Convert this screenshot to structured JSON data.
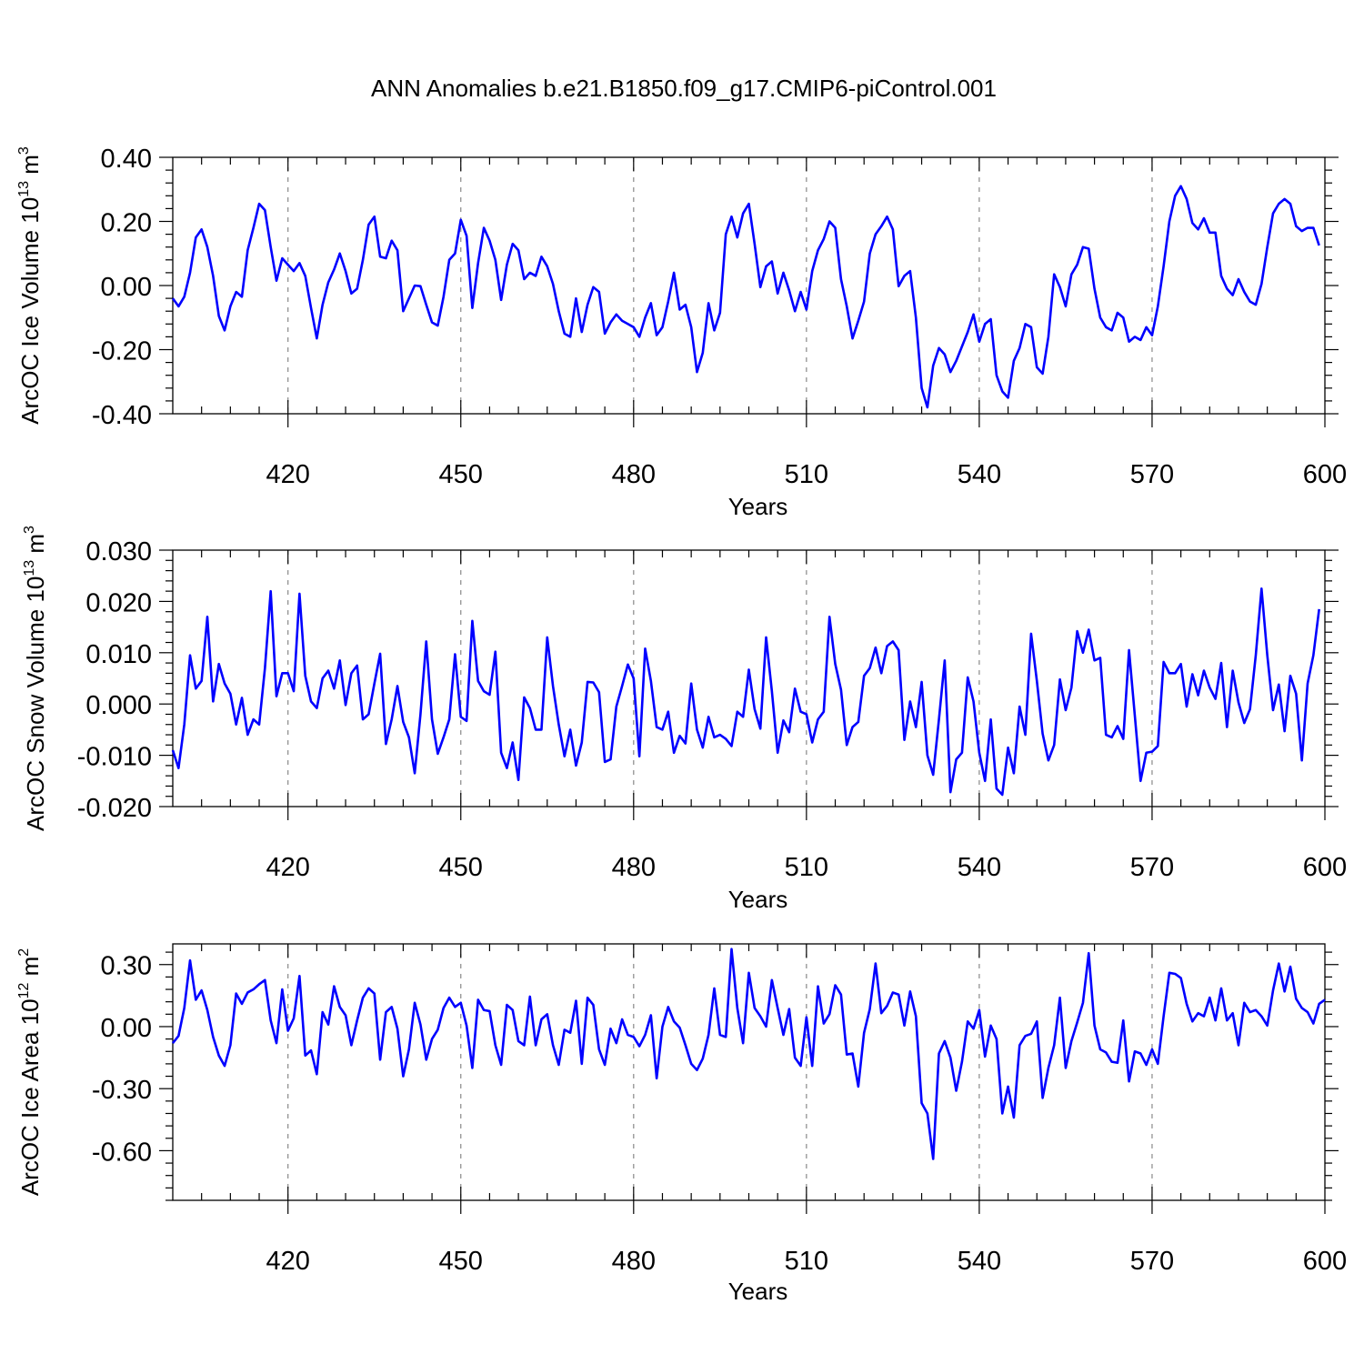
{
  "title": "ANN Anomalies b.e21.B1850.f09_g17.CMIP6-piControl.001",
  "chart_data": [
    {
      "type": "line",
      "xlabel": "Years",
      "ylabel": {
        "main": "ArcOC Ice Volume 10",
        "exp": "13",
        "unit": " m",
        "unit_exp": "3"
      },
      "xlim": [
        400,
        600
      ],
      "ylim": [
        -0.4,
        0.4
      ],
      "xticks": [
        420,
        450,
        480,
        510,
        540,
        570,
        600
      ],
      "yticks": [
        -0.4,
        -0.2,
        0.0,
        0.2,
        0.4
      ],
      "ytick_labels": [
        "-0.40",
        "-0.20",
        "0.00",
        "0.20",
        "0.40"
      ],
      "grid": "vertical dashed at x ticks",
      "color": "#0000ff",
      "series": [
        {
          "x0": 400,
          "dx": 1,
          "values": [
            -0.04,
            -0.065,
            -0.035,
            0.04,
            0.15,
            0.175,
            0.12,
            0.03,
            -0.095,
            -0.14,
            -0.065,
            -0.02,
            -0.035,
            0.11,
            0.18,
            0.255,
            0.235,
            0.12,
            0.015,
            0.085,
            0.065,
            0.045,
            0.07,
            0.03,
            -0.07,
            -0.165,
            -0.06,
            0.01,
            0.05,
            0.1,
            0.045,
            -0.025,
            -0.01,
            0.08,
            0.19,
            0.215,
            0.09,
            0.085,
            0.14,
            0.11,
            -0.08,
            -0.04,
            0.0,
            -0.002,
            -0.06,
            -0.115,
            -0.125,
            -0.035,
            0.08,
            0.1,
            0.205,
            0.155,
            -0.07,
            0.07,
            0.18,
            0.14,
            0.08,
            -0.045,
            0.065,
            0.13,
            0.11,
            0.02,
            0.04,
            0.03,
            0.09,
            0.06,
            0.005,
            -0.08,
            -0.15,
            -0.16,
            -0.04,
            -0.145,
            -0.06,
            -0.005,
            -0.02,
            -0.15,
            -0.115,
            -0.09,
            -0.11,
            -0.12,
            -0.13,
            -0.16,
            -0.1,
            -0.055,
            -0.155,
            -0.13,
            -0.05,
            0.04,
            -0.075,
            -0.06,
            -0.13,
            -0.27,
            -0.21,
            -0.055,
            -0.14,
            -0.085,
            0.16,
            0.215,
            0.15,
            0.225,
            0.255,
            0.13,
            -0.005,
            0.06,
            0.075,
            -0.025,
            0.04,
            -0.015,
            -0.08,
            -0.02,
            -0.075,
            0.045,
            0.11,
            0.145,
            0.2,
            0.18,
            0.02,
            -0.065,
            -0.165,
            -0.11,
            -0.05,
            0.1,
            0.16,
            0.185,
            0.215,
            0.175,
            -0.002,
            0.03,
            0.045,
            -0.1,
            -0.32,
            -0.38,
            -0.25,
            -0.195,
            -0.215,
            -0.27,
            -0.235,
            -0.19,
            -0.145,
            -0.09,
            -0.175,
            -0.12,
            -0.105,
            -0.28,
            -0.33,
            -0.35,
            -0.235,
            -0.195,
            -0.12,
            -0.13,
            -0.255,
            -0.275,
            -0.16,
            0.035,
            -0.005,
            -0.065,
            0.035,
            0.065,
            0.12,
            0.115,
            -0.01,
            -0.1,
            -0.13,
            -0.14,
            -0.085,
            -0.1,
            -0.175,
            -0.16,
            -0.17,
            -0.13,
            -0.155,
            -0.065,
            0.06,
            0.2,
            0.28,
            0.31,
            0.27,
            0.195,
            0.175,
            0.21,
            0.165,
            0.165,
            0.03,
            -0.01,
            -0.03,
            0.02,
            -0.02,
            -0.05,
            -0.06,
            0.005,
            0.12,
            0.225,
            0.255,
            0.27,
            0.255,
            0.185,
            0.17,
            0.18,
            0.18,
            0.125
          ]
        }
      ]
    },
    {
      "type": "line",
      "xlabel": "Years",
      "ylabel": {
        "main": "ArcOC Snow Volume 10",
        "exp": "13",
        "unit": " m",
        "unit_exp": "3"
      },
      "xlim": [
        400,
        600
      ],
      "ylim": [
        -0.02,
        0.03
      ],
      "xticks": [
        420,
        450,
        480,
        510,
        540,
        570,
        600
      ],
      "yticks": [
        -0.02,
        -0.01,
        0.0,
        0.01,
        0.02,
        0.03
      ],
      "ytick_labels": [
        "-0.020",
        "-0.010",
        "0.000",
        "0.010",
        "0.020",
        "0.030"
      ],
      "grid": "vertical dashed at x ticks",
      "color": "#0000ff",
      "series": [
        {
          "x0": 400,
          "dx": 1,
          "values": [
            -0.009,
            -0.0125,
            -0.004,
            0.0095,
            0.003,
            0.0045,
            0.017,
            0.0005,
            0.0078,
            0.004,
            0.002,
            -0.004,
            0.0012,
            -0.006,
            -0.003,
            -0.004,
            0.007,
            0.022,
            0.0015,
            0.006,
            0.006,
            0.0025,
            0.0215,
            0.0055,
            0.0005,
            -0.0008,
            0.005,
            0.0065,
            0.003,
            0.0085,
            -0.0002,
            0.006,
            0.0075,
            -0.003,
            -0.002,
            0.004,
            0.0098,
            -0.0078,
            -0.003,
            0.0035,
            -0.0035,
            -0.0065,
            -0.0135,
            -0.002,
            0.0122,
            -0.003,
            -0.0097,
            -0.0065,
            -0.003,
            0.0097,
            -0.0025,
            -0.0033,
            0.0162,
            0.0045,
            0.0025,
            0.0018,
            0.0102,
            -0.0095,
            -0.0125,
            -0.0075,
            -0.0148,
            0.0013,
            -0.0008,
            -0.005,
            -0.005,
            0.013,
            0.0035,
            -0.004,
            -0.0102,
            -0.005,
            -0.012,
            -0.0075,
            0.0043,
            0.0042,
            0.0023,
            -0.0113,
            -0.0108,
            -0.0005,
            0.0035,
            0.0077,
            0.005,
            -0.0102,
            0.0108,
            0.0045,
            -0.0045,
            -0.005,
            -0.0015,
            -0.0095,
            -0.0062,
            -0.0077,
            0.004,
            -0.005,
            -0.0085,
            -0.0025,
            -0.0065,
            -0.006,
            -0.0068,
            -0.0082,
            -0.0015,
            -0.0025,
            0.0067,
            -0.001,
            -0.0048,
            0.013,
            0.0025,
            -0.0095,
            -0.0032,
            -0.0055,
            0.003,
            -0.0015,
            -0.002,
            -0.0075,
            -0.003,
            -0.0015,
            0.017,
            0.0078,
            0.0028,
            -0.008,
            -0.0045,
            -0.0035,
            0.0055,
            0.007,
            0.011,
            0.006,
            0.0113,
            0.0122,
            0.0105,
            -0.007,
            0.0005,
            -0.0045,
            0.0043,
            -0.01,
            -0.0138,
            -0.003,
            0.0085,
            -0.0172,
            -0.0108,
            -0.0095,
            0.0052,
            0.0005,
            -0.0095,
            -0.015,
            -0.003,
            -0.0165,
            -0.0177,
            -0.0085,
            -0.0135,
            -0.0005,
            -0.006,
            0.0137,
            0.0045,
            -0.0058,
            -0.011,
            -0.008,
            0.0048,
            -0.0012,
            0.0032,
            0.0142,
            0.01,
            0.0145,
            0.0085,
            0.009,
            -0.006,
            -0.0065,
            -0.0043,
            -0.0068,
            0.0105,
            -0.0022,
            -0.015,
            -0.0095,
            -0.0093,
            -0.0082,
            0.0082,
            0.006,
            0.006,
            0.0078,
            -0.0005,
            0.0058,
            0.0017,
            0.0065,
            0.0032,
            0.001,
            0.008,
            -0.0045,
            0.0065,
            0.0003,
            -0.0037,
            -0.001,
            0.0095,
            0.0225,
            0.0095,
            -0.0012,
            0.0038,
            -0.0053,
            0.0055,
            0.002,
            -0.011,
            0.004,
            0.0095,
            0.0185
          ]
        }
      ]
    },
    {
      "type": "line",
      "xlabel": "Years",
      "ylabel": {
        "main": "ArcOC Ice Area 10",
        "exp": "12",
        "unit": " m",
        "unit_exp": "2"
      },
      "xlim": [
        400,
        600
      ],
      "ylim": [
        -0.84,
        0.4
      ],
      "xticks": [
        420,
        450,
        480,
        510,
        540,
        570,
        600
      ],
      "yticks": [
        -0.6,
        -0.3,
        0.0,
        0.3
      ],
      "ytick_labels": [
        "-0.60",
        "-0.30",
        "0.00",
        "0.30"
      ],
      "grid": "vertical dashed at x ticks",
      "color": "#0000ff",
      "series": [
        {
          "x0": 400,
          "dx": 1,
          "values": [
            -0.08,
            -0.045,
            0.09,
            0.32,
            0.13,
            0.175,
            0.08,
            -0.05,
            -0.14,
            -0.19,
            -0.09,
            0.16,
            0.11,
            0.165,
            0.18,
            0.205,
            0.225,
            0.03,
            -0.08,
            0.18,
            -0.02,
            0.04,
            0.245,
            -0.14,
            -0.115,
            -0.23,
            0.07,
            0.01,
            0.195,
            0.095,
            0.055,
            -0.09,
            0.03,
            0.14,
            0.185,
            0.16,
            -0.16,
            0.07,
            0.095,
            -0.01,
            -0.24,
            -0.11,
            0.115,
            0.01,
            -0.16,
            -0.06,
            -0.015,
            0.09,
            0.14,
            0.095,
            0.115,
            0.005,
            -0.2,
            0.13,
            0.08,
            0.075,
            -0.09,
            -0.185,
            0.105,
            0.08,
            -0.07,
            -0.09,
            0.145,
            -0.09,
            0.035,
            0.06,
            -0.09,
            -0.185,
            -0.015,
            -0.03,
            0.125,
            -0.18,
            0.14,
            0.105,
            -0.11,
            -0.185,
            -0.01,
            -0.08,
            0.035,
            -0.04,
            -0.05,
            -0.095,
            -0.04,
            0.055,
            -0.25,
            0.0,
            0.095,
            0.025,
            -0.005,
            -0.09,
            -0.18,
            -0.21,
            -0.155,
            -0.04,
            0.185,
            -0.04,
            -0.05,
            0.375,
            0.09,
            -0.08,
            0.26,
            0.09,
            0.05,
            0.0,
            0.225,
            0.09,
            -0.04,
            0.085,
            -0.15,
            -0.19,
            0.045,
            -0.19,
            0.195,
            0.015,
            0.06,
            0.2,
            0.155,
            -0.135,
            -0.13,
            -0.29,
            -0.03,
            0.085,
            0.305,
            0.065,
            0.1,
            0.165,
            0.155,
            0.005,
            0.17,
            0.05,
            -0.37,
            -0.42,
            -0.64,
            -0.13,
            -0.07,
            -0.15,
            -0.31,
            -0.17,
            0.025,
            -0.01,
            0.08,
            -0.145,
            0.005,
            -0.06,
            -0.42,
            -0.29,
            -0.44,
            -0.09,
            -0.045,
            -0.035,
            0.025,
            -0.345,
            -0.2,
            -0.09,
            0.14,
            -0.2,
            -0.07,
            0.02,
            0.115,
            0.355,
            0.005,
            -0.11,
            -0.125,
            -0.17,
            -0.175,
            0.03,
            -0.265,
            -0.12,
            -0.13,
            -0.185,
            -0.11,
            -0.18,
            0.05,
            0.26,
            0.255,
            0.235,
            0.11,
            0.025,
            0.065,
            0.05,
            0.14,
            0.03,
            0.185,
            0.03,
            0.065,
            -0.09,
            0.115,
            0.07,
            0.08,
            0.05,
            0.005,
            0.175,
            0.305,
            0.17,
            0.29,
            0.135,
            0.09,
            0.07,
            0.015,
            0.11,
            0.13
          ]
        }
      ]
    }
  ]
}
